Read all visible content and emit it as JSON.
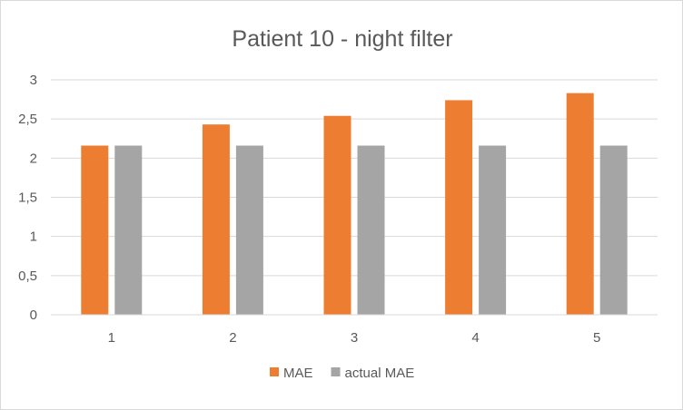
{
  "chart_data": {
    "type": "bar",
    "title": "Patient 10 - night filter",
    "xlabel": "",
    "ylabel": "",
    "categories": [
      "1",
      "2",
      "3",
      "4",
      "5"
    ],
    "ylim": [
      0,
      3
    ],
    "yticks": [
      "0",
      "0,5",
      "1",
      "1,5",
      "2",
      "2,5",
      "3"
    ],
    "grid": true,
    "legend_position": "bottom",
    "series": [
      {
        "name": "MAE",
        "color": "#ED7D31",
        "values": [
          2.16,
          2.43,
          2.54,
          2.74,
          2.83
        ]
      },
      {
        "name": "actual MAE",
        "color": "#A5A5A5",
        "values": [
          2.16,
          2.16,
          2.16,
          2.16,
          2.16
        ]
      }
    ]
  }
}
